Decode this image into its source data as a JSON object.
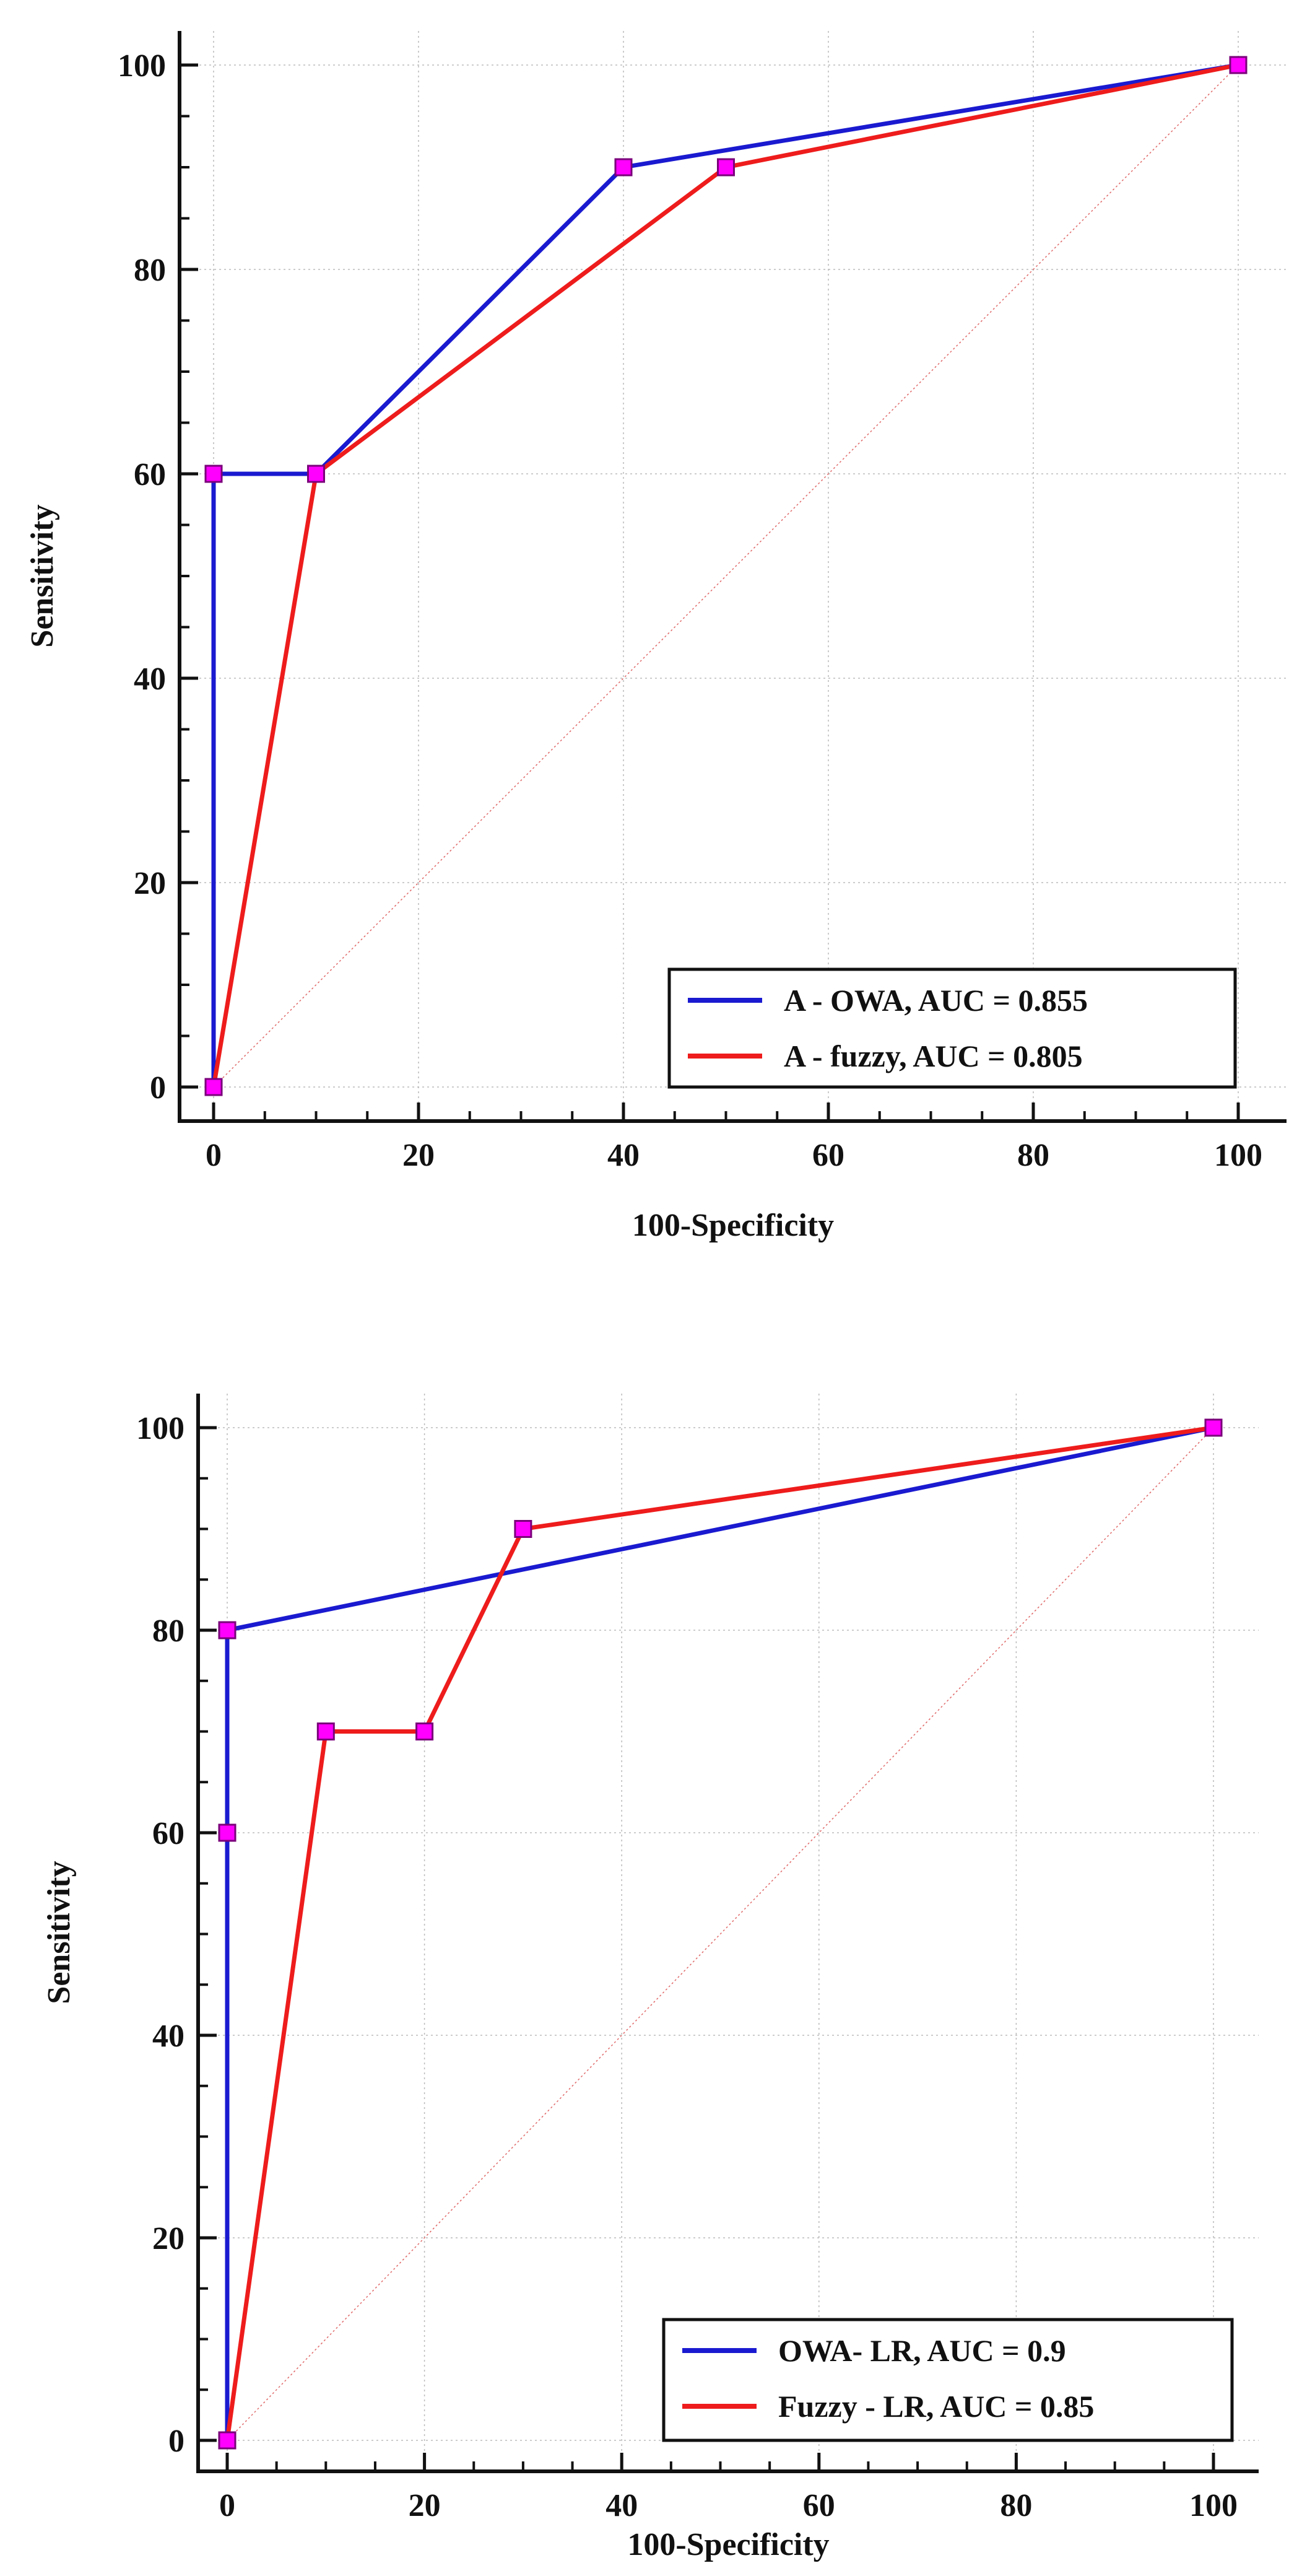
{
  "chart_data": [
    {
      "type": "line",
      "title": "",
      "xlabel": "100-Specificity",
      "ylabel": "Sensitivity",
      "xlim": [
        0,
        100
      ],
      "ylim": [
        0,
        100
      ],
      "xticks": [
        "0",
        "20",
        "40",
        "60",
        "80",
        "100"
      ],
      "yticks": [
        "0",
        "20",
        "40",
        "60",
        "80",
        "100"
      ],
      "grid": true,
      "legend_position": "bottom-right",
      "reference_diagonal": true,
      "series": [
        {
          "name": "A - OWA, AUC = 0.855",
          "color": "#1a1ad0",
          "x": [
            0,
            0,
            10,
            40,
            100
          ],
          "y": [
            0,
            60,
            60,
            90,
            100
          ]
        },
        {
          "name": "A - fuzzy, AUC = 0.805",
          "color": "#ee1c1c",
          "x": [
            0,
            10,
            50,
            100
          ],
          "y": [
            0,
            60,
            90,
            100
          ]
        }
      ]
    },
    {
      "type": "line",
      "title": "",
      "xlabel": "100-Specificity",
      "ylabel": "Sensitivity",
      "xlim": [
        0,
        100
      ],
      "ylim": [
        0,
        100
      ],
      "xticks": [
        "0",
        "20",
        "40",
        "60",
        "80",
        "100"
      ],
      "yticks": [
        "0",
        "20",
        "40",
        "60",
        "80",
        "100"
      ],
      "grid": true,
      "legend_position": "bottom-right",
      "reference_diagonal": true,
      "series": [
        {
          "name": "OWA- LR, AUC = 0.9",
          "color": "#1a1ad0",
          "x": [
            0,
            0,
            0,
            100
          ],
          "y": [
            0,
            60,
            80,
            100
          ]
        },
        {
          "name": "Fuzzy - LR, AUC = 0.85",
          "color": "#ee1c1c",
          "x": [
            0,
            10,
            20,
            30,
            100
          ],
          "y": [
            0,
            70,
            70,
            90,
            100
          ]
        }
      ]
    }
  ],
  "colors": {
    "marker_fill": "#ff00ff",
    "marker_stroke": "#7a007a",
    "grid": "#bbbbbb",
    "diagonal": "#e06666"
  }
}
